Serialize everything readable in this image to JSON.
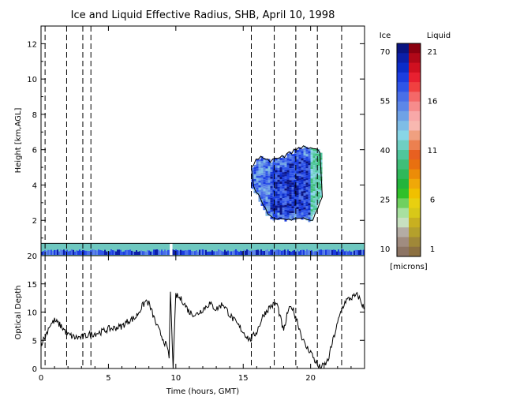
{
  "chart_data": [
    {
      "type": "heatmap",
      "title": "Ice and Liquid Effective Radius, SHB, April 10, 1998",
      "ylabel": "Height [km,AGL]",
      "xlim": [
        0,
        24
      ],
      "ylim": [
        0,
        13
      ],
      "x_ticks": [
        "0",
        "5",
        "10",
        "15",
        "20"
      ],
      "y_ticks": [
        "2",
        "4",
        "6",
        "8",
        "10",
        "12"
      ],
      "dashed_lines_x": [
        0.3,
        1.9,
        3.1,
        3.7,
        15.6,
        17.3,
        18.9,
        20.5,
        22.3
      ],
      "features": [
        {
          "name": "ice cloud",
          "x_start": 15.6,
          "x_end": 20.8,
          "y_bottom": 2.0,
          "y_top": 5.9
        },
        {
          "name": "low liquid layer",
          "x_start": 0.0,
          "x_end": 24.0,
          "y_bottom": 0.0,
          "y_top": 0.7
        }
      ],
      "colorbar": {
        "ice_label": "Ice",
        "liquid_label": "Liquid",
        "units": "[microns]",
        "ice_ticks": [
          "70",
          "55",
          "40",
          "25",
          "10"
        ],
        "liquid_ticks": [
          "21",
          "16",
          "11",
          "6",
          "1"
        ],
        "ice_colors": [
          "#0a1480",
          "#0c1fa8",
          "#0b2cc8",
          "#1b3de0",
          "#2f55e8",
          "#4a6fe8",
          "#5d87e8",
          "#6fa2e6",
          "#7fbde6",
          "#88d6e6",
          "#6fcfc2",
          "#4fc69c",
          "#3fbe78",
          "#2fb85a",
          "#22b43c",
          "#30c02a",
          "#70d060",
          "#a8e0a0",
          "#c8e0c0",
          "#b4aca4",
          "#a08c80",
          "#8c7464"
        ],
        "liquid_colors": [
          "#8a0010",
          "#b00818",
          "#d01020",
          "#e82030",
          "#f04040",
          "#f46868",
          "#f68c8c",
          "#f8a8a8",
          "#f8b8b0",
          "#f0a080",
          "#ec8050",
          "#e86020",
          "#e87010",
          "#ec8c08",
          "#f0a808",
          "#f0c000",
          "#e8d010",
          "#d8c818",
          "#c8b020",
          "#b4a02c",
          "#a08838",
          "#8c7040"
        ]
      }
    },
    {
      "type": "line",
      "ylabel": "Optical Depth",
      "xlabel": "Time (hours, GMT)",
      "xlim": [
        0,
        24
      ],
      "ylim": [
        0,
        20
      ],
      "x_ticks": [
        "0",
        "5",
        "10",
        "15",
        "20"
      ],
      "y_ticks": [
        "0",
        "5",
        "10",
        "15",
        "20"
      ],
      "dashed_lines_x": [
        0.3,
        1.9,
        3.1,
        3.7,
        15.6,
        17.3,
        18.9,
        20.5,
        22.3
      ],
      "series": [
        {
          "x": [
            0,
            0.3,
            0.6,
            1.0,
            1.5,
            2.0,
            2.5,
            3.0,
            3.5,
            4.0,
            4.5,
            5.0,
            5.5,
            6.0,
            6.5,
            7.0,
            7.5,
            7.8,
            8.0,
            8.3,
            8.6,
            9.0,
            9.3,
            9.5,
            9.6,
            9.8,
            10.0,
            10.5,
            11.0,
            11.5,
            12.0,
            12.5,
            13.0,
            13.5,
            14.0,
            14.5,
            15.0,
            15.5,
            16.0,
            16.5,
            17.0,
            17.5,
            18.0,
            18.3,
            18.6,
            19.0,
            19.3,
            19.6,
            20.0,
            20.3,
            20.6,
            21.0,
            21.3,
            21.6,
            22.0,
            22.3,
            22.6,
            23.0,
            23.5,
            24.0
          ],
          "values": [
            4.5,
            5.5,
            7.5,
            8.5,
            7.5,
            6.0,
            5.5,
            5.5,
            6.0,
            6.2,
            6.5,
            7.0,
            7.2,
            7.5,
            8.5,
            9.0,
            11.0,
            12.0,
            11.5,
            9.5,
            7.5,
            5.5,
            4.0,
            2.0,
            13.5,
            0.2,
            13.0,
            12.0,
            10.0,
            9.5,
            10.5,
            11.5,
            10.5,
            11.5,
            9.5,
            8.0,
            6.5,
            5.0,
            6.5,
            9.5,
            11.0,
            11.5,
            6.5,
            10.0,
            11.0,
            8.5,
            6.0,
            4.0,
            3.0,
            1.5,
            0.2,
            0.5,
            1.5,
            4.5,
            8.0,
            10.5,
            12.0,
            12.5,
            13.0,
            10.5
          ]
        }
      ]
    }
  ]
}
